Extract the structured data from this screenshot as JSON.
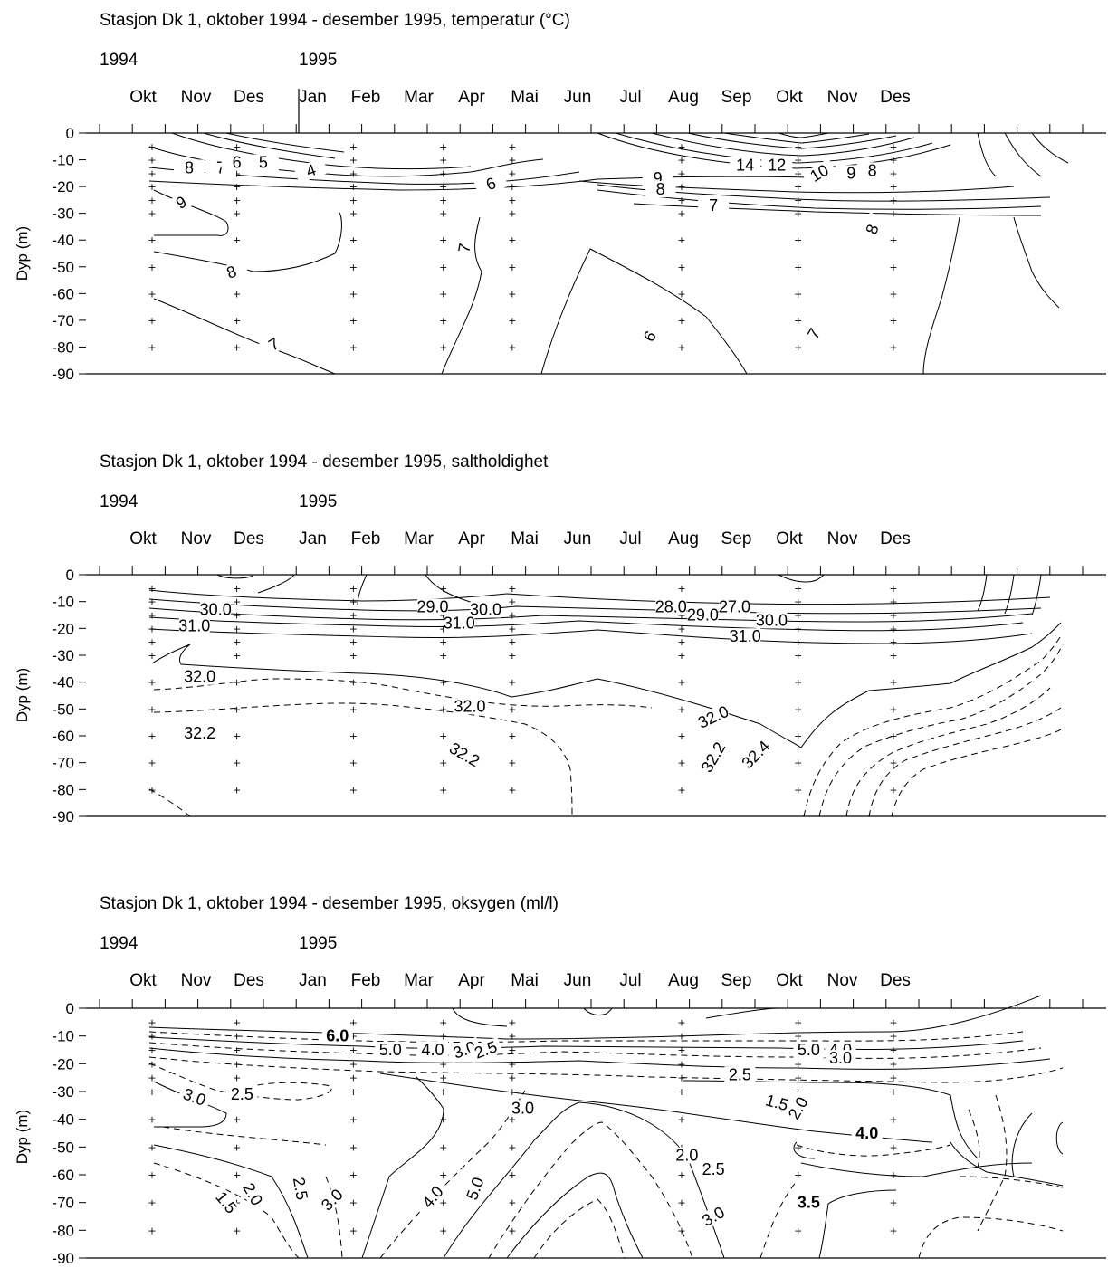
{
  "chart_data": [
    {
      "type": "contour",
      "title": "Stasjon Dk 1, oktober 1994 - desember 1995, temperatur (°C)",
      "years": [
        "1994",
        "1995"
      ],
      "months": [
        "Okt",
        "Nov",
        "Des",
        "Jan",
        "Feb",
        "Mar",
        "Apr",
        "Mai",
        "Jun",
        "Jul",
        "Aug",
        "Sep",
        "Okt",
        "Nov",
        "Des"
      ],
      "ylabel": "Dyp (m)",
      "yticks": [
        0,
        -10,
        -20,
        -30,
        -40,
        -50,
        -60,
        -70,
        -80,
        -90
      ],
      "ylim": [
        -90,
        0
      ],
      "station_months": [
        0.0,
        1.6,
        3.8,
        5.5,
        6.8,
        10.0,
        12.2,
        14.0
      ],
      "station_depths": [
        -5,
        -10,
        -15,
        -20,
        -25,
        -30,
        -40,
        -50,
        -60,
        -70,
        -80
      ],
      "contour_labels": [
        {
          "text": "8",
          "month": 0.7,
          "depth": -13
        },
        {
          "text": "7",
          "month": 1.3,
          "depth": -13
        },
        {
          "text": "6",
          "month": 1.6,
          "depth": -11
        },
        {
          "text": "5",
          "month": 2.1,
          "depth": -11
        },
        {
          "text": "4",
          "month": 3.0,
          "depth": -14,
          "rotate": -20
        },
        {
          "text": "6",
          "month": 6.4,
          "depth": -19,
          "rotate": -20
        },
        {
          "text": "9",
          "month": 0.55,
          "depth": -26,
          "rotate": -30
        },
        {
          "text": "8",
          "month": 1.5,
          "depth": -52,
          "rotate": -20
        },
        {
          "text": "7",
          "month": 2.3,
          "depth": -79,
          "rotate": -30
        },
        {
          "text": "7",
          "month": 5.9,
          "depth": -43,
          "rotate": -80
        },
        {
          "text": "6",
          "month": 9.4,
          "depth": -76,
          "rotate": -60
        },
        {
          "text": "9",
          "month": 9.55,
          "depth": -17
        },
        {
          "text": "8",
          "month": 9.6,
          "depth": -21
        },
        {
          "text": "7",
          "month": 10.6,
          "depth": -27
        },
        {
          "text": "14",
          "month": 11.2,
          "depth": -12
        },
        {
          "text": "12",
          "month": 11.8,
          "depth": -12
        },
        {
          "text": "10",
          "month": 12.6,
          "depth": -15,
          "rotate": -30
        },
        {
          "text": "9",
          "month": 13.2,
          "depth": -15
        },
        {
          "text": "8",
          "month": 13.6,
          "depth": -14
        },
        {
          "text": "8",
          "month": 13.6,
          "depth": -36,
          "rotate": -70
        },
        {
          "text": "7",
          "month": 12.5,
          "depth": -75,
          "rotate": -60
        }
      ]
    },
    {
      "type": "contour",
      "title": "Stasjon Dk 1, oktober 1994 - desember 1995, saltholdighet",
      "years": [
        "1994",
        "1995"
      ],
      "months": [
        "Okt",
        "Nov",
        "Des",
        "Jan",
        "Feb",
        "Mar",
        "Apr",
        "Mai",
        "Jun",
        "Jul",
        "Aug",
        "Sep",
        "Okt",
        "Nov",
        "Des"
      ],
      "ylabel": "Dyp (m)",
      "yticks": [
        0,
        -10,
        -20,
        -30,
        -40,
        -50,
        -60,
        -70,
        -80,
        -90
      ],
      "ylim": [
        -90,
        0
      ],
      "station_months": [
        0.0,
        1.6,
        3.8,
        5.5,
        6.8,
        10.0,
        12.2,
        14.0
      ],
      "station_depths": [
        -5,
        -10,
        -15,
        -20,
        -25,
        -30,
        -40,
        -50,
        -60,
        -70,
        -80
      ],
      "contour_labels": [
        {
          "text": "30.0",
          "month": 1.2,
          "depth": -13
        },
        {
          "text": "31.0",
          "month": 0.8,
          "depth": -19
        },
        {
          "text": "29.0",
          "month": 5.3,
          "depth": -12
        },
        {
          "text": "30.0",
          "month": 6.3,
          "depth": -13
        },
        {
          "text": "31.0",
          "month": 5.8,
          "depth": -18
        },
        {
          "text": "28.0",
          "month": 9.8,
          "depth": -12
        },
        {
          "text": "29.0",
          "month": 10.4,
          "depth": -15
        },
        {
          "text": "27.0",
          "month": 11.0,
          "depth": -12
        },
        {
          "text": "30.0",
          "month": 11.7,
          "depth": -17
        },
        {
          "text": "31.0",
          "month": 11.2,
          "depth": -23
        },
        {
          "text": "32.0",
          "month": 0.9,
          "depth": -38
        },
        {
          "text": "32.0",
          "month": 6.0,
          "depth": -49
        },
        {
          "text": "32.2",
          "month": 0.9,
          "depth": -59
        },
        {
          "text": "32.2",
          "month": 5.9,
          "depth": -67,
          "rotate": 30
        },
        {
          "text": "32.0",
          "month": 10.6,
          "depth": -53,
          "rotate": -25
        },
        {
          "text": "32.2",
          "month": 10.6,
          "depth": -68,
          "rotate": -60
        },
        {
          "text": "32.4",
          "month": 11.4,
          "depth": -67,
          "rotate": -45
        }
      ]
    },
    {
      "type": "contour",
      "title": "Stasjon Dk 1, oktober 1994 - desember 1995, oksygen (ml/l)",
      "years": [
        "1994",
        "1995"
      ],
      "months": [
        "Okt",
        "Nov",
        "Des",
        "Jan",
        "Feb",
        "Mar",
        "Apr",
        "Mai",
        "Jun",
        "Jul",
        "Aug",
        "Sep",
        "Okt",
        "Nov",
        "Des"
      ],
      "ylabel": "Dyp (m)",
      "yticks": [
        0,
        -10,
        -20,
        -30,
        -40,
        -50,
        -60,
        -70,
        -80,
        -90
      ],
      "ylim": [
        -90,
        0
      ],
      "station_months": [
        0.0,
        1.6,
        3.8,
        5.5,
        6.8,
        10.0,
        12.2,
        14.0
      ],
      "station_depths": [
        -5,
        -10,
        -15,
        -20,
        -25,
        -30,
        -40,
        -50,
        -60,
        -70,
        -80
      ],
      "contour_labels": [
        {
          "text": "6.0",
          "month": 3.5,
          "depth": -10,
          "bold": true
        },
        {
          "text": "5.0",
          "month": 4.5,
          "depth": -15
        },
        {
          "text": "4.0",
          "month": 5.3,
          "depth": -15
        },
        {
          "text": "3.0",
          "month": 5.9,
          "depth": -15,
          "rotate": -20
        },
        {
          "text": "2.5",
          "month": 6.3,
          "depth": -15,
          "rotate": -20
        },
        {
          "text": "5.0",
          "month": 12.4,
          "depth": -15
        },
        {
          "text": "4.0",
          "month": 13.0,
          "depth": -15
        },
        {
          "text": "3.0",
          "month": 13.0,
          "depth": -18
        },
        {
          "text": "2.5",
          "month": 11.1,
          "depth": -24
        },
        {
          "text": "3.0",
          "month": 0.8,
          "depth": -32,
          "rotate": 20
        },
        {
          "text": "2.5",
          "month": 1.7,
          "depth": -31
        },
        {
          "text": "3.0",
          "month": 7.0,
          "depth": -36
        },
        {
          "text": "1.5",
          "month": 11.8,
          "depth": -34,
          "rotate": 15
        },
        {
          "text": "2.0",
          "month": 12.2,
          "depth": -36,
          "rotate": -60
        },
        {
          "text": "4.0",
          "month": 13.5,
          "depth": -45,
          "bold": true
        },
        {
          "text": "2.0",
          "month": 10.1,
          "depth": -53
        },
        {
          "text": "2.5",
          "month": 10.6,
          "depth": -58
        },
        {
          "text": "1.5",
          "month": 1.4,
          "depth": -70,
          "rotate": 50
        },
        {
          "text": "2.0",
          "month": 1.9,
          "depth": -67,
          "rotate": 60
        },
        {
          "text": "2.5",
          "month": 2.8,
          "depth": -65,
          "rotate": 80
        },
        {
          "text": "3.0",
          "month": 3.4,
          "depth": -69,
          "rotate": -45
        },
        {
          "text": "4.0",
          "month": 5.3,
          "depth": -68,
          "rotate": -50
        },
        {
          "text": "5.0",
          "month": 6.1,
          "depth": -65,
          "rotate": -70
        },
        {
          "text": "3.0",
          "month": 10.6,
          "depth": -75,
          "rotate": -30
        },
        {
          "text": "3.5",
          "month": 12.4,
          "depth": -70,
          "bold": true
        }
      ]
    }
  ]
}
